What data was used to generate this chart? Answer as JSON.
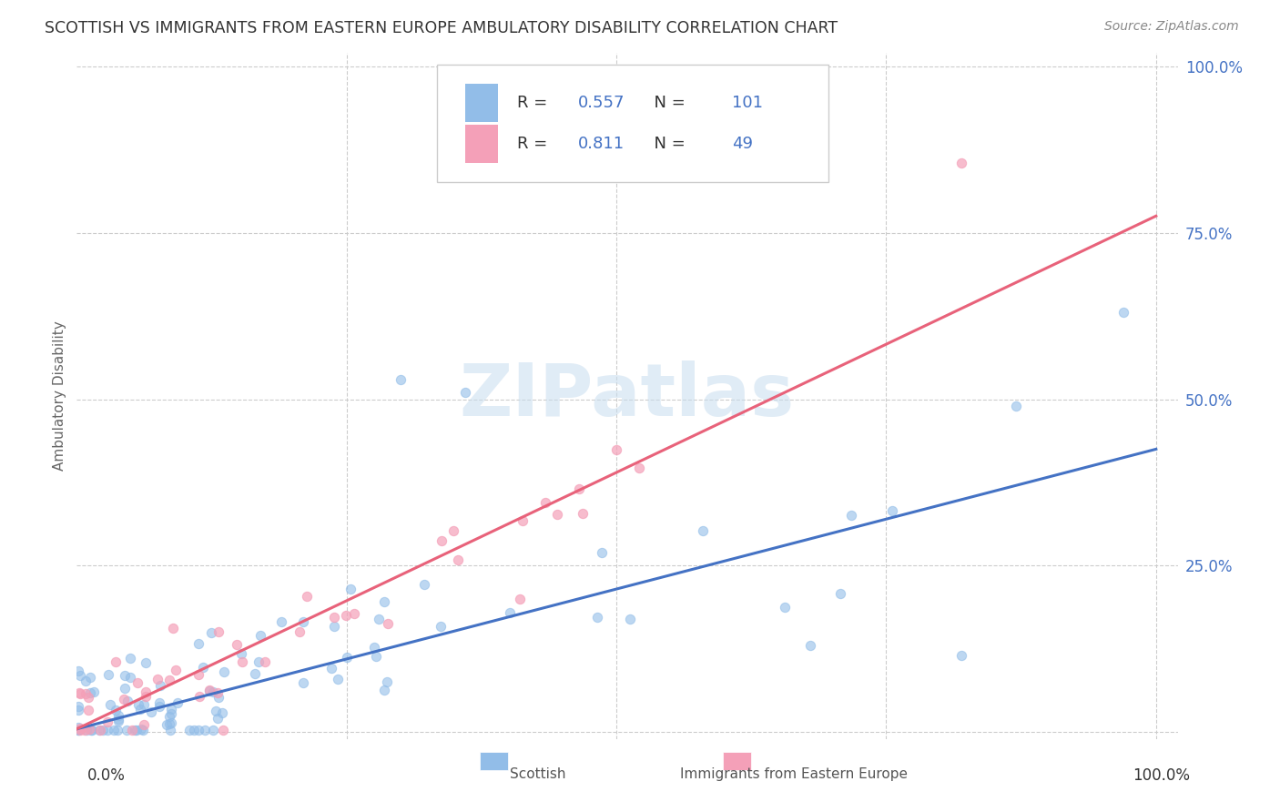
{
  "title": "SCOTTISH VS IMMIGRANTS FROM EASTERN EUROPE AMBULATORY DISABILITY CORRELATION CHART",
  "source": "Source: ZipAtlas.com",
  "ylabel": "Ambulatory Disability",
  "scottish_color": "#92BDE8",
  "eastern_color": "#F4A0B8",
  "scottish_line_color": "#4472C4",
  "eastern_line_color": "#E8627A",
  "legend_R_scottish": "0.557",
  "legend_N_scottish": "101",
  "legend_R_eastern": "0.811",
  "legend_N_eastern": "49",
  "watermark_text": "ZIPatlas",
  "title_fontsize": 12.5,
  "source_fontsize": 10,
  "label_color": "#4472C4",
  "scottish_slope": 0.42,
  "scottish_intercept": 0.005,
  "eastern_slope": 0.77,
  "eastern_intercept": 0.005,
  "xlim": [
    0.0,
    1.02
  ],
  "ylim": [
    -0.01,
    1.02
  ]
}
